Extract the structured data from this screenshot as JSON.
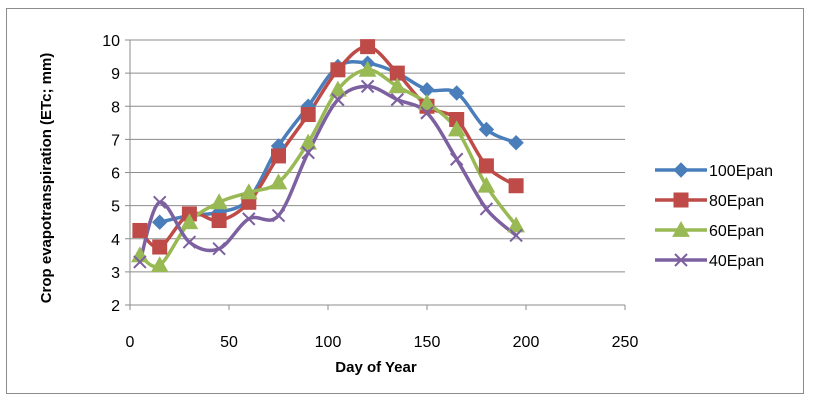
{
  "chart_data": {
    "type": "line",
    "title": "",
    "xlabel": "Day of Year",
    "ylabel": "Crop evapotranspiration (ETc; mm)",
    "xlim": [
      0,
      250
    ],
    "ylim": [
      2,
      10
    ],
    "xticks": [
      0,
      50,
      100,
      150,
      200,
      250
    ],
    "yticks": [
      2,
      3,
      4,
      5,
      6,
      7,
      8,
      9,
      10
    ],
    "grid": "horizontal",
    "legend": "right",
    "series": [
      {
        "name": "100Epan",
        "color": "#4a7ebb",
        "marker": "diamond",
        "x": [
          15,
          30,
          45,
          60,
          75,
          90,
          105,
          120,
          135,
          150,
          165,
          180,
          195
        ],
        "y": [
          4.5,
          4.7,
          4.8,
          5.2,
          6.8,
          8.0,
          9.2,
          9.3,
          9.0,
          8.5,
          8.4,
          7.3,
          6.9
        ]
      },
      {
        "name": "80Epan",
        "color": "#be4b48",
        "marker": "square",
        "x": [
          5,
          15,
          30,
          45,
          60,
          75,
          90,
          105,
          120,
          135,
          150,
          165,
          180,
          195
        ],
        "y": [
          4.25,
          3.75,
          4.75,
          4.55,
          5.1,
          6.5,
          7.75,
          9.1,
          9.8,
          9.0,
          8.0,
          7.6,
          6.2,
          5.6
        ]
      },
      {
        "name": "60Epan",
        "color": "#98b954",
        "marker": "triangle",
        "x": [
          5,
          15,
          30,
          45,
          60,
          75,
          90,
          105,
          120,
          135,
          150,
          165,
          180,
          195
        ],
        "y": [
          3.5,
          3.2,
          4.5,
          5.1,
          5.4,
          5.7,
          6.9,
          8.5,
          9.1,
          8.6,
          8.1,
          7.3,
          5.6,
          4.4
        ]
      },
      {
        "name": "40Epan",
        "color": "#7d60a0",
        "marker": "x",
        "x": [
          5,
          15,
          30,
          45,
          60,
          75,
          90,
          105,
          120,
          135,
          150,
          165,
          180,
          195
        ],
        "y": [
          3.3,
          5.1,
          3.9,
          3.7,
          4.6,
          4.7,
          6.6,
          8.2,
          8.6,
          8.2,
          7.8,
          6.4,
          4.9,
          4.1
        ]
      }
    ]
  }
}
